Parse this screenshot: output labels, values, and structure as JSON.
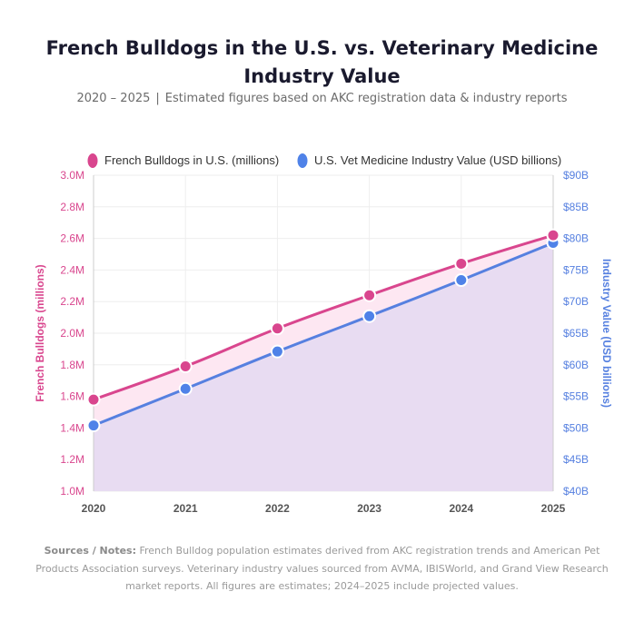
{
  "header": {
    "title": "French Bulldogs in the U.S. vs. Veterinary Medicine Industry Value",
    "subtitle_years": "2020 – 2025",
    "subtitle_separator": "|",
    "subtitle_text": "Estimated figures based on AKC registration data & industry reports"
  },
  "notes": {
    "label": "Sources / Notes:",
    "text": "French Bulldog population estimates derived from AKC registration trends and American Pet Products Association surveys. Veterinary industry values sourced from AVMA, IBISWorld, and Grand View Research market reports. All figures are estimates; 2024–2025 include projected values."
  },
  "colors": {
    "bulldogs": "#d9468e",
    "bulldogs_fill": "#fde7f2",
    "vet": "#5680e0",
    "vet_fill": "#e8dcf2",
    "vet_point": "#4f82e8",
    "grid": "#eeeeee",
    "axis_text": "#555555"
  },
  "chart_data": {
    "type": "line",
    "x": [
      "2020",
      "2021",
      "2022",
      "2023",
      "2024",
      "2025"
    ],
    "series": [
      {
        "name": "French Bulldogs in U.S. (millions)",
        "axis": "left",
        "values": [
          1.58,
          1.79,
          2.03,
          2.24,
          2.44,
          2.62
        ]
      },
      {
        "name": "U.S. Vet Medicine Industry Value (USD billions)",
        "axis": "right",
        "values": [
          50.4,
          56.2,
          62.1,
          67.7,
          73.4,
          79.3
        ]
      }
    ],
    "y_left": {
      "label": "French Bulldogs (millions)",
      "min": 1.0,
      "max": 3.0,
      "ticks": [
        "1.0M",
        "1.2M",
        "1.4M",
        "1.6M",
        "1.8M",
        "2.0M",
        "2.2M",
        "2.4M",
        "2.6M",
        "2.8M",
        "3.0M"
      ]
    },
    "y_right": {
      "label": "Industry Value (USD billions)",
      "min": 40,
      "max": 90,
      "ticks": [
        "$40B",
        "$45B",
        "$50B",
        "$55B",
        "$60B",
        "$65B",
        "$70B",
        "$75B",
        "$80B",
        "$85B",
        "$90B"
      ]
    },
    "legend_position": "top-left",
    "grid": true
  }
}
